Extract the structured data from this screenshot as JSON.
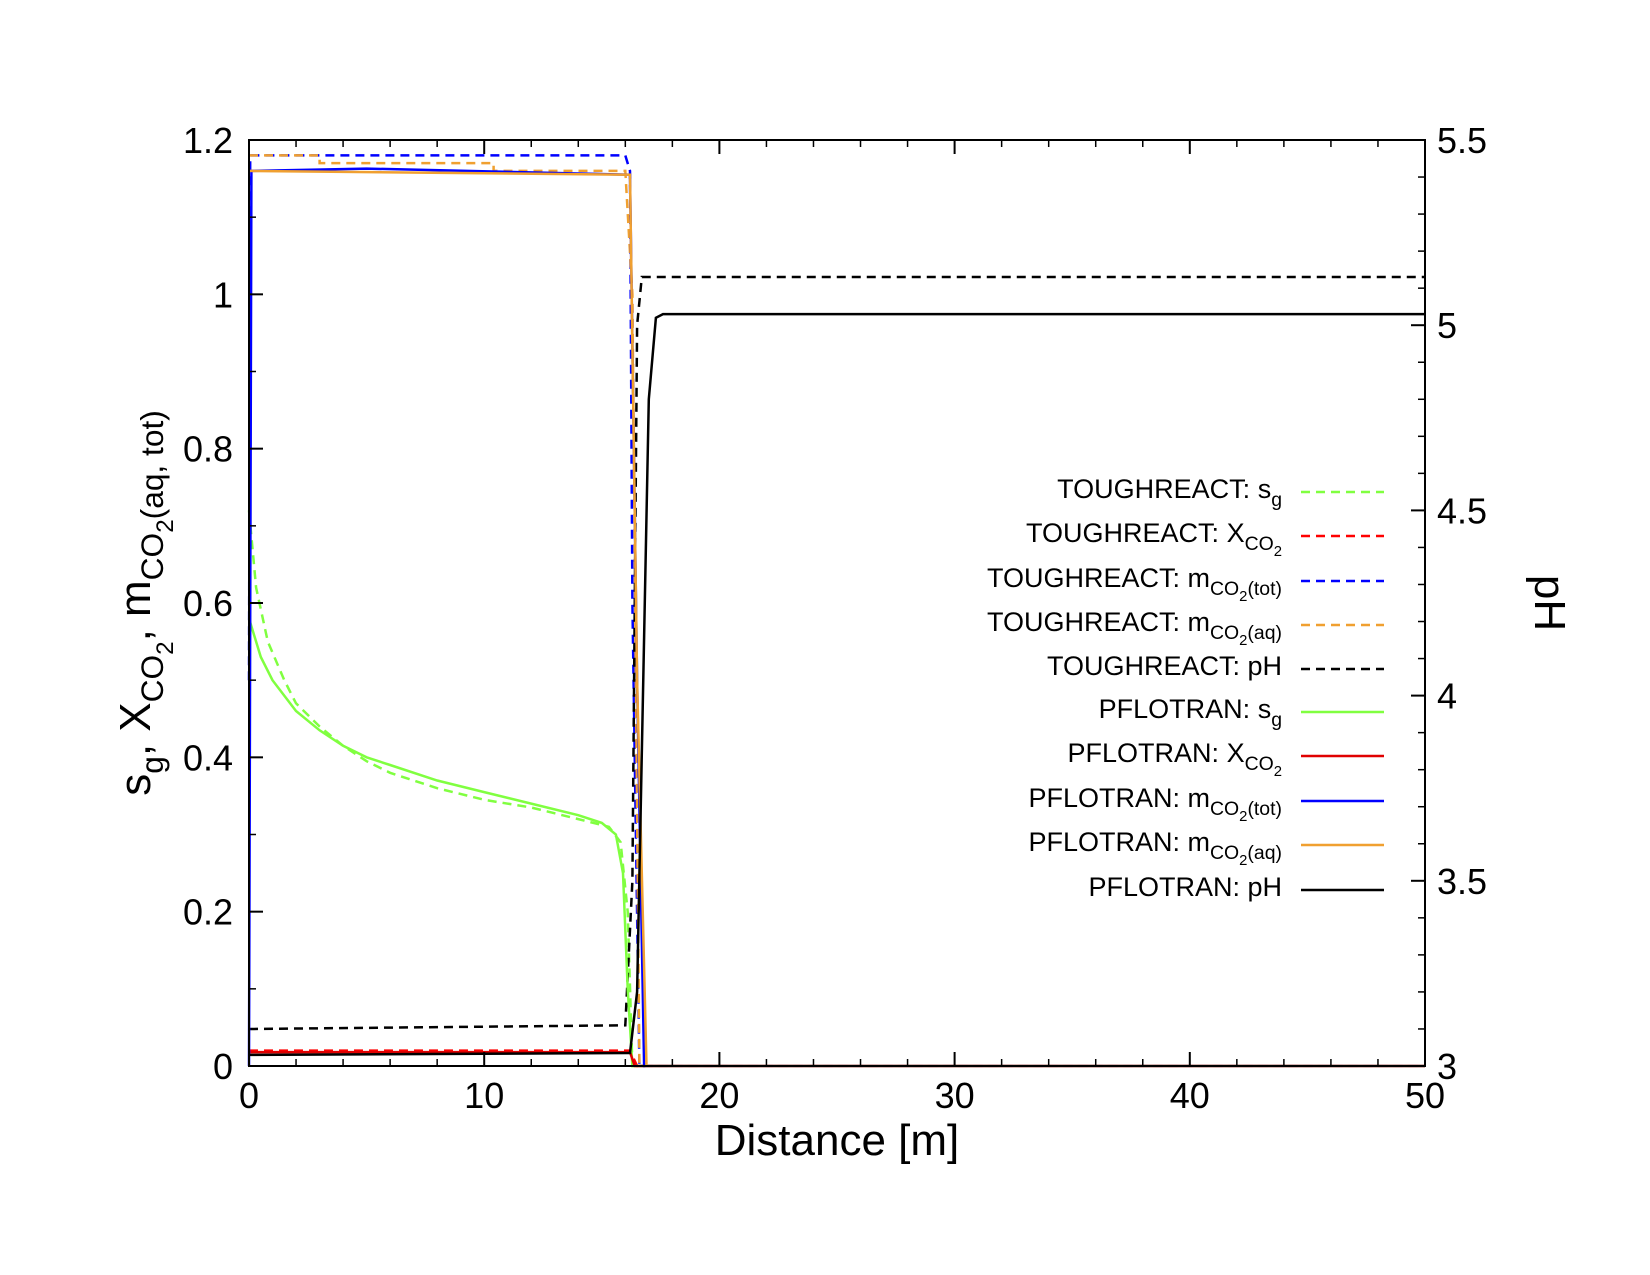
{
  "chart_data": {
    "type": "line",
    "xlabel": "Distance [m]",
    "ylabel_parts": [
      {
        "t": "s"
      },
      {
        "t": "g",
        "sub": 1
      },
      {
        "t": ", X"
      },
      {
        "t": "CO",
        "sub": 1
      },
      {
        "t": "2",
        "sub": 2
      },
      {
        "t": ", m"
      },
      {
        "t": "CO",
        "sub": 1
      },
      {
        "t": "2",
        "sub": 2
      },
      {
        "t": "(aq, tot)",
        "sub": 1
      }
    ],
    "y2label": "pH",
    "xlim": [
      0,
      50
    ],
    "ylim": [
      0,
      1.2
    ],
    "y2lim": [
      3,
      5.5
    ],
    "xticks": [
      "0",
      "10",
      "20",
      "30",
      "40",
      "50"
    ],
    "yticks": [
      "0",
      "0.2",
      "0.4",
      "0.6",
      "0.8",
      "1",
      "1.2"
    ],
    "y2ticks": [
      "3",
      "3.5",
      "4",
      "4.5",
      "5",
      "5.5"
    ],
    "grid": false,
    "legend_position": "right",
    "series": [
      {
        "name": "TOUGHREACT: s_g",
        "source": "TOUGHREACT",
        "label": [
          {
            "t": "s"
          },
          {
            "t": "g",
            "sub": 1
          }
        ],
        "color": "#80ff40",
        "dash": true,
        "axis": "left",
        "points": [
          [
            0,
            0.72
          ],
          [
            0.3,
            0.62
          ],
          [
            0.8,
            0.55
          ],
          [
            1.5,
            0.5
          ],
          [
            2,
            0.47
          ],
          [
            3,
            0.44
          ],
          [
            4,
            0.415
          ],
          [
            5,
            0.395
          ],
          [
            6,
            0.38
          ],
          [
            8,
            0.36
          ],
          [
            10,
            0.345
          ],
          [
            12,
            0.335
          ],
          [
            14,
            0.32
          ],
          [
            15.3,
            0.31
          ],
          [
            15.8,
            0.29
          ],
          [
            16.1,
            0.2
          ],
          [
            16.3,
            0
          ],
          [
            50,
            0
          ]
        ]
      },
      {
        "name": "TOUGHREACT: X_CO2",
        "source": "TOUGHREACT",
        "label": [
          {
            "t": "X"
          },
          {
            "t": "CO",
            "sub": 1
          },
          {
            "t": "2",
            "sub": 2
          }
        ],
        "color": "#ff0000",
        "dash": true,
        "axis": "left",
        "points": [
          [
            0,
            0.02
          ],
          [
            16.2,
            0.02
          ],
          [
            16.5,
            0
          ],
          [
            50,
            0
          ]
        ]
      },
      {
        "name": "TOUGHREACT: m_CO2(tot)",
        "source": "TOUGHREACT",
        "label": [
          {
            "t": "m"
          },
          {
            "t": "CO",
            "sub": 1
          },
          {
            "t": "2",
            "sub": 2
          },
          {
            "t": "(tot)",
            "sub": 1
          }
        ],
        "color": "#0000ff",
        "dash": true,
        "axis": "left",
        "points": [
          [
            0,
            0.5
          ],
          [
            0.05,
            1.18
          ],
          [
            16,
            1.18
          ],
          [
            16.2,
            1.16
          ],
          [
            16.3,
            0.6
          ],
          [
            16.6,
            0
          ],
          [
            50,
            0
          ]
        ]
      },
      {
        "name": "TOUGHREACT: m_CO2(aq)",
        "source": "TOUGHREACT",
        "label": [
          {
            "t": "m"
          },
          {
            "t": "CO",
            "sub": 1
          },
          {
            "t": "2",
            "sub": 2
          },
          {
            "t": "(aq)",
            "sub": 1
          }
        ],
        "color": "#f0a030",
        "dash": true,
        "axis": "left",
        "points": [
          [
            0,
            1.18
          ],
          [
            3,
            1.18
          ],
          [
            3,
            1.17
          ],
          [
            10.4,
            1.17
          ],
          [
            10.4,
            1.16
          ],
          [
            16,
            1.16
          ],
          [
            16.3,
            1.0
          ],
          [
            16.6,
            0
          ],
          [
            50,
            0
          ]
        ]
      },
      {
        "name": "TOUGHREACT: pH",
        "source": "TOUGHREACT",
        "label": [
          {
            "t": "pH"
          }
        ],
        "color": "#000000",
        "dash": true,
        "axis": "right",
        "points": [
          [
            0,
            3.1
          ],
          [
            16,
            3.11
          ],
          [
            16.3,
            3.5
          ],
          [
            16.5,
            5.0
          ],
          [
            16.7,
            5.13
          ],
          [
            50,
            5.13
          ]
        ]
      },
      {
        "name": "PFLOTRAN: s_g",
        "source": "PFLOTRAN",
        "label": [
          {
            "t": "s"
          },
          {
            "t": "g",
            "sub": 1
          }
        ],
        "color": "#80ff40",
        "dash": false,
        "axis": "left",
        "points": [
          [
            0,
            0.58
          ],
          [
            0.5,
            0.53
          ],
          [
            1,
            0.5
          ],
          [
            2,
            0.46
          ],
          [
            3,
            0.435
          ],
          [
            4,
            0.415
          ],
          [
            5,
            0.4
          ],
          [
            6,
            0.39
          ],
          [
            8,
            0.37
          ],
          [
            10,
            0.355
          ],
          [
            12,
            0.34
          ],
          [
            14,
            0.325
          ],
          [
            15,
            0.315
          ],
          [
            15.6,
            0.3
          ],
          [
            15.9,
            0.25
          ],
          [
            16.1,
            0.1
          ],
          [
            16.3,
            0
          ],
          [
            50,
            0
          ]
        ]
      },
      {
        "name": "PFLOTRAN: X_CO2",
        "source": "PFLOTRAN",
        "label": [
          {
            "t": "X"
          },
          {
            "t": "CO",
            "sub": 1
          },
          {
            "t": "2",
            "sub": 2
          }
        ],
        "color": "#e00000",
        "dash": false,
        "axis": "left",
        "points": [
          [
            0,
            0.018
          ],
          [
            16.2,
            0.018
          ],
          [
            16.4,
            0
          ],
          [
            50,
            0
          ]
        ]
      },
      {
        "name": "PFLOTRAN: m_CO2(tot)",
        "source": "PFLOTRAN",
        "label": [
          {
            "t": "m"
          },
          {
            "t": "CO",
            "sub": 1
          },
          {
            "t": "2",
            "sub": 2
          },
          {
            "t": "(tot)",
            "sub": 1
          }
        ],
        "color": "#0000ff",
        "dash": false,
        "axis": "left",
        "points": [
          [
            0,
            0
          ],
          [
            0.1,
            1.16
          ],
          [
            5,
            1.163
          ],
          [
            16.2,
            1.155
          ],
          [
            16.5,
            0.5
          ],
          [
            16.8,
            0
          ],
          [
            50,
            0
          ]
        ]
      },
      {
        "name": "PFLOTRAN: m_CO2(aq)",
        "source": "PFLOTRAN",
        "label": [
          {
            "t": "m"
          },
          {
            "t": "CO",
            "sub": 1
          },
          {
            "t": "2",
            "sub": 2
          },
          {
            "t": "(aq)",
            "sub": 1
          }
        ],
        "color": "#f0a030",
        "dash": false,
        "axis": "left",
        "points": [
          [
            0,
            1.16
          ],
          [
            16.2,
            1.155
          ],
          [
            16.5,
            0.5
          ],
          [
            16.9,
            0
          ],
          [
            50,
            0
          ]
        ]
      },
      {
        "name": "PFLOTRAN: pH",
        "source": "PFLOTRAN",
        "label": [
          {
            "t": "pH"
          }
        ],
        "color": "#000000",
        "dash": false,
        "axis": "right",
        "points": [
          [
            0,
            3.03
          ],
          [
            16.2,
            3.035
          ],
          [
            16.5,
            3.2
          ],
          [
            17,
            4.8
          ],
          [
            17.3,
            5.02
          ],
          [
            17.6,
            5.03
          ],
          [
            50,
            5.03
          ]
        ]
      }
    ]
  }
}
